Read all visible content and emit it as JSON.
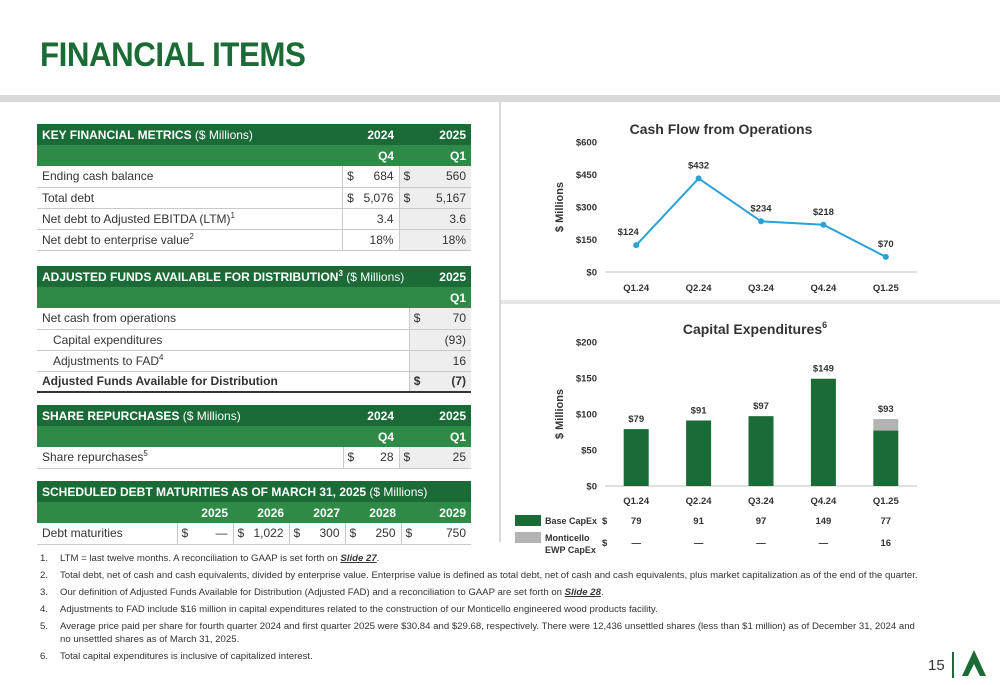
{
  "page_title": "FINANCIAL ITEMS",
  "page_number": "15",
  "key_metrics": {
    "title": "KEY FINANCIAL METRICS",
    "unit": "($ Millions)",
    "col_years": [
      "2024",
      "2025"
    ],
    "col_quarters": [
      "Q4",
      "Q1"
    ],
    "rows": [
      {
        "label": "Ending cash balance",
        "sup": "",
        "c1": "$",
        "v1": "684",
        "c2": "$",
        "v2": "560"
      },
      {
        "label": "Total debt",
        "sup": "",
        "c1": "$",
        "v1": "5,076",
        "c2": "$",
        "v2": "5,167"
      },
      {
        "label": "Net debt to Adjusted EBITDA (LTM)",
        "sup": "1",
        "c1": "",
        "v1": "3.4",
        "c2": "",
        "v2": "3.6"
      },
      {
        "label": "Net debt to enterprise value",
        "sup": "2",
        "c1": "",
        "v1": "18%",
        "c2": "",
        "v2": "18%"
      }
    ]
  },
  "fad": {
    "title": "ADJUSTED FUNDS AVAILABLE FOR DISTRIBUTION",
    "title_sup": "3",
    "unit": "($ Millions)",
    "col_year": "2025",
    "col_quarter": "Q1",
    "rows": [
      {
        "label": "Net cash from operations",
        "sup": "",
        "cur": "$",
        "value": "70"
      },
      {
        "label": "Capital expenditures",
        "sup": "",
        "cur": "",
        "value": "(93)"
      },
      {
        "label": "Adjustments to FAD",
        "sup": "4",
        "cur": "",
        "value": "16"
      }
    ],
    "total": {
      "label": "Adjusted Funds Available for Distribution",
      "cur": "$",
      "value": "(7)"
    }
  },
  "share_repurchases": {
    "title": "SHARE REPURCHASES",
    "unit": "($ Millions)",
    "col_years": [
      "2024",
      "2025"
    ],
    "col_quarters": [
      "Q4",
      "Q1"
    ],
    "row": {
      "label": "Share repurchases",
      "sup": "5",
      "c1": "$",
      "v1": "28",
      "c2": "$",
      "v2": "25"
    }
  },
  "debt_maturities": {
    "title": "SCHEDULED DEBT MATURITIES AS OF MARCH 31, 2025",
    "unit": "($ Millions)",
    "years": [
      "2025",
      "2026",
      "2027",
      "2028",
      "2029"
    ],
    "row_label": "Debt maturities",
    "currency": "$",
    "values": [
      "—",
      "1,022",
      "300",
      "250",
      "750"
    ]
  },
  "chart_data": [
    {
      "type": "line",
      "title": "Cash Flow from Operations",
      "ylabel": "$ Millions",
      "categories": [
        "Q1.24",
        "Q2.24",
        "Q3.24",
        "Q4.24",
        "Q1.25"
      ],
      "values": [
        124,
        432,
        234,
        218,
        70
      ],
      "data_labels": [
        "$124",
        "$432",
        "$234",
        "$218",
        "$70"
      ],
      "yticks": [
        "$0",
        "$150",
        "$300",
        "$450",
        "$600"
      ],
      "ylim": [
        0,
        600
      ],
      "color": "#29a3d6"
    },
    {
      "type": "bar",
      "stacked": true,
      "title": "Capital Expenditures",
      "title_sup": "6",
      "ylabel": "$ Millions",
      "categories": [
        "Q1.24",
        "Q2.24",
        "Q3.24",
        "Q4.24",
        "Q1.25"
      ],
      "series": [
        {
          "name": "Base CapEx",
          "values": [
            79,
            91,
            97,
            149,
            77
          ],
          "color": "#1a6b35"
        },
        {
          "name": "Monticello EWP CapEx",
          "values": [
            0,
            0,
            0,
            0,
            16
          ],
          "color": "#b3b3b3"
        }
      ],
      "data_labels": [
        "$79",
        "$91",
        "$97",
        "$149",
        "$93"
      ],
      "yticks": [
        "$0",
        "$50",
        "$100",
        "$150",
        "$200"
      ],
      "ylim": [
        0,
        200
      ],
      "table": {
        "currency": "$",
        "rows": [
          {
            "label": "Base CapEx",
            "values": [
              "79",
              "91",
              "97",
              "149",
              "77"
            ]
          },
          {
            "label_lines": [
              "Monticello",
              "EWP CapEx"
            ],
            "values": [
              "—",
              "—",
              "—",
              "—",
              "16"
            ]
          }
        ]
      }
    }
  ],
  "footnotes": [
    {
      "n": "1.",
      "text": "LTM = last twelve months. A reconciliation to GAAP is set forth on ",
      "link": "Slide 27",
      "after": "."
    },
    {
      "n": "2.",
      "text": "Total debt, net of cash and cash equivalents, divided by enterprise value. Enterprise value is defined as total debt, net of cash and cash equivalents, plus market capitalization as of the end of the quarter.",
      "link": "",
      "after": ""
    },
    {
      "n": "3.",
      "text": "Our definition of Adjusted Funds Available for Distribution (Adjusted FAD) and a reconciliation to GAAP are set forth on ",
      "link": "Slide 28",
      "after": "."
    },
    {
      "n": "4.",
      "text": "Adjustments to FAD include $16 million in capital expenditures related to the construction of our Monticello engineered wood products facility.",
      "link": "",
      "after": ""
    },
    {
      "n": "5.",
      "text": "Average price paid per share for fourth quarter 2024 and first quarter 2025 were $30.84 and $29.68, respectively. There were 12,436 unsettled shares (less than $1 million) as of December 31, 2024 and no unsettled shares as of March 31, 2025.",
      "link": "",
      "after": ""
    },
    {
      "n": "6.",
      "text": "Total capital expenditures is inclusive of capitalized interest.",
      "link": "",
      "after": ""
    }
  ]
}
